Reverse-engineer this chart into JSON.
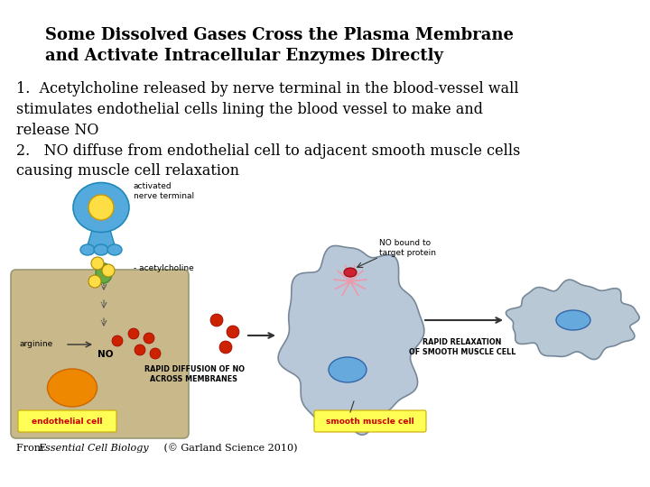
{
  "title_line1": "Some Dissolved Gases Cross the Plasma Membrane",
  "title_line2": "and Activate Intracellular Enzymes Directly",
  "body_text": "1.  Acetylcholine released by nerve terminal in the blood-vessel wall\nstimulates endothelial cells lining the blood vessel to make and\nrelease NO\n2.   NO diffuse from endothelial cell to adjacent smooth muscle cells\ncausing muscle cell relaxation",
  "caption_prefix": "From  ",
  "caption_italic": "Essential Cell Biology",
  "caption_suffix": " (© Garland Science 2010)",
  "bg_color": "#ffffff",
  "title_fontsize": 13,
  "body_fontsize": 11.5,
  "caption_fontsize": 8,
  "title_color": "#000000",
  "body_color": "#000000",
  "caption_color": "#000000",
  "endothelial_bg": "#c8b88a",
  "muscle_bg": "#b8c8d8",
  "relaxed_bg": "#b8c8d4",
  "nerve_color": "#55aadd",
  "no_dot_color": "#cc2200",
  "arrow_color": "#333333",
  "label_yellow": "#ffff55",
  "label_red_text": "#cc0000",
  "orange_nucleus": "#ee8800",
  "green_receptor": "#66aa44",
  "blue_nucleus_smc": "#66aadd"
}
